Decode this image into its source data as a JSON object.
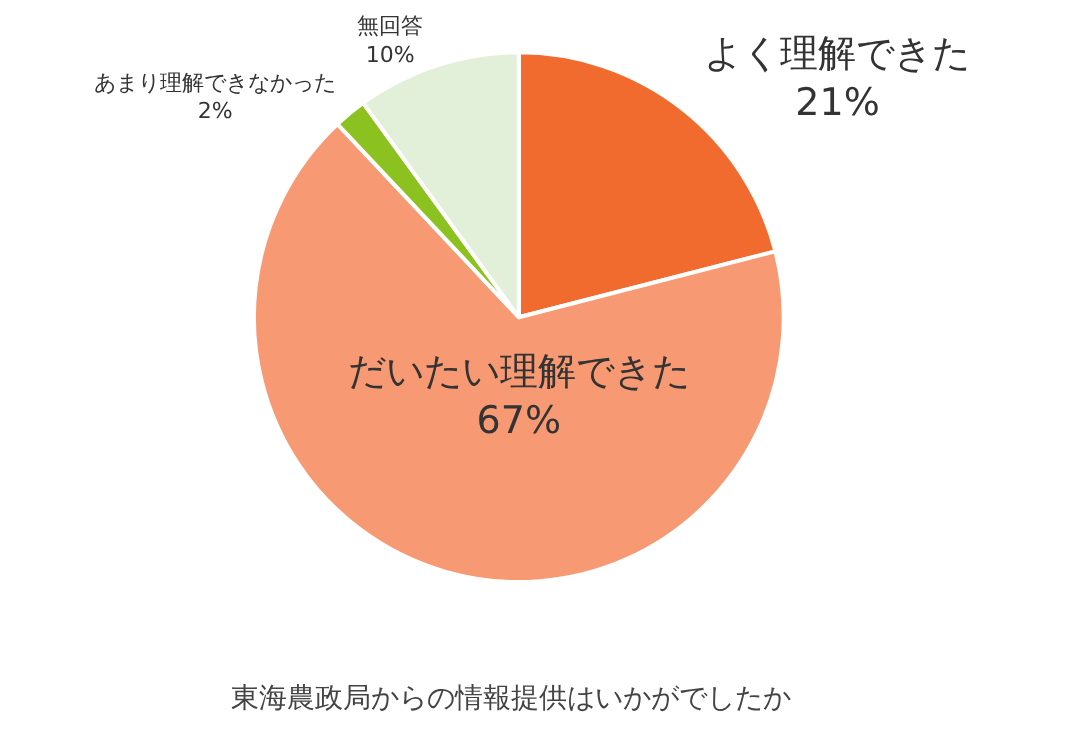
{
  "chart_data": {
    "type": "pie",
    "title": "東海農政局からの情報提供はいかがでしたか",
    "categories": [
      "よく理解できた",
      "だいたい理解できた",
      "あまり理解できなかった",
      "無回答"
    ],
    "values": [
      21,
      67,
      2,
      10
    ],
    "value_labels": [
      "21%",
      "67%",
      "2%",
      "10%"
    ],
    "colors": [
      "#f26b2e",
      "#f79a73",
      "#8cc21f",
      "#e2efd9"
    ],
    "legend": false
  }
}
